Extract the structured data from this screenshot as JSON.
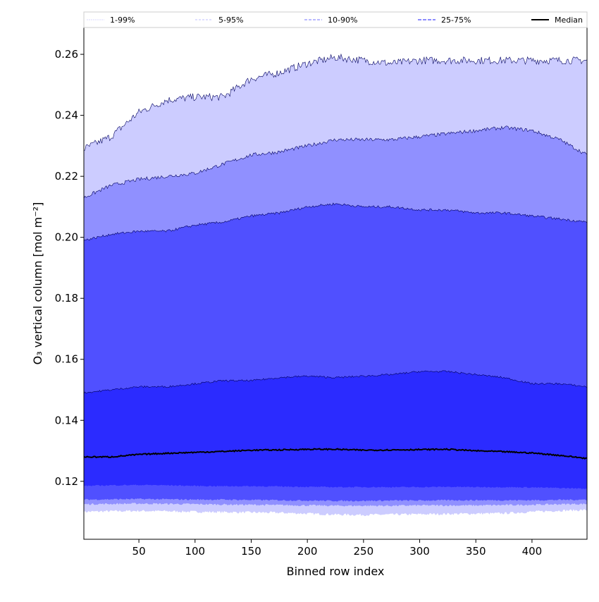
{
  "chart_data": {
    "type": "area",
    "title": "",
    "xlabel": "Binned row index",
    "ylabel": "O₃ vertical column [mol m⁻²]",
    "xlim": [
      1,
      449
    ],
    "ylim": [
      0.101,
      0.2688
    ],
    "xticks": [
      50,
      100,
      150,
      200,
      250,
      300,
      350,
      400
    ],
    "yticks": [
      0.12,
      0.14,
      0.16,
      0.18,
      0.2,
      0.22,
      0.24,
      0.26
    ],
    "ytick_labels": [
      "0.12",
      "0.14",
      "0.16",
      "0.18",
      "0.20",
      "0.22",
      "0.24",
      "0.26"
    ],
    "grid": false,
    "legend_position": "top",
    "x": [
      1,
      25,
      50,
      75,
      100,
      125,
      150,
      175,
      200,
      225,
      250,
      275,
      300,
      325,
      350,
      375,
      400,
      425,
      449
    ],
    "series": [
      {
        "name": "1-99%",
        "color": "#ccccff",
        "low": [
          0.11,
          0.1102,
          0.1103,
          0.1102,
          0.11,
          0.1099,
          0.1098,
          0.1097,
          0.1094,
          0.1091,
          0.109,
          0.1091,
          0.1092,
          0.1093,
          0.1094,
          0.1095,
          0.11,
          0.1104,
          0.1106
        ],
        "high": [
          0.229,
          0.233,
          0.241,
          0.245,
          0.246,
          0.246,
          0.252,
          0.254,
          0.257,
          0.259,
          0.258,
          0.257,
          0.258,
          0.258,
          0.258,
          0.258,
          0.258,
          0.258,
          0.258
        ]
      },
      {
        "name": "5-95%",
        "color": "#9090ff",
        "low": [
          0.1125,
          0.1126,
          0.1127,
          0.1126,
          0.1125,
          0.1124,
          0.1123,
          0.1122,
          0.1121,
          0.112,
          0.112,
          0.112,
          0.1121,
          0.1121,
          0.1121,
          0.1122,
          0.1123,
          0.1125,
          0.1126
        ],
        "high": [
          0.213,
          0.217,
          0.219,
          0.22,
          0.221,
          0.224,
          0.227,
          0.228,
          0.23,
          0.232,
          0.232,
          0.232,
          0.233,
          0.234,
          0.235,
          0.236,
          0.235,
          0.232,
          0.227
        ]
      },
      {
        "name": "10-90%",
        "color": "#5050ff",
        "low": [
          0.114,
          0.1141,
          0.1142,
          0.1141,
          0.114,
          0.114,
          0.1139,
          0.1138,
          0.1137,
          0.1136,
          0.1136,
          0.1137,
          0.1137,
          0.1138,
          0.1138,
          0.1138,
          0.1138,
          0.1139,
          0.114
        ],
        "high": [
          0.199,
          0.201,
          0.202,
          0.202,
          0.204,
          0.205,
          0.207,
          0.208,
          0.21,
          0.211,
          0.21,
          0.21,
          0.209,
          0.209,
          0.208,
          0.208,
          0.207,
          0.206,
          0.205
        ]
      },
      {
        "name": "25-75%",
        "color": "#2b2bff",
        "low": [
          0.1185,
          0.1187,
          0.1188,
          0.1187,
          0.1185,
          0.1184,
          0.1184,
          0.1183,
          0.1182,
          0.1181,
          0.1181,
          0.1181,
          0.1181,
          0.1182,
          0.1181,
          0.1181,
          0.118,
          0.1178,
          0.1176
        ],
        "high": [
          0.149,
          0.15,
          0.151,
          0.151,
          0.152,
          0.153,
          0.153,
          0.154,
          0.1545,
          0.154,
          0.1545,
          0.155,
          0.156,
          0.156,
          0.155,
          0.154,
          0.152,
          0.152,
          0.151
        ]
      },
      {
        "name": "Median",
        "color": "#000000",
        "values": [
          0.128,
          0.128,
          0.1288,
          0.1292,
          0.1295,
          0.1298,
          0.1302,
          0.1303,
          0.1305,
          0.1305,
          0.1302,
          0.1303,
          0.1304,
          0.1305,
          0.13,
          0.1297,
          0.1293,
          0.1285,
          0.1275
        ]
      }
    ]
  }
}
